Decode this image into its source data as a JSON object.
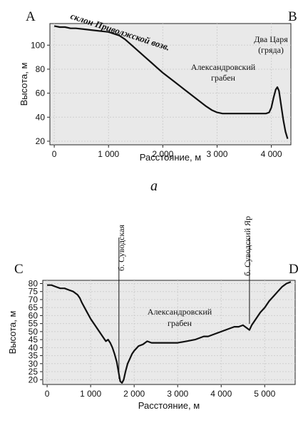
{
  "chart_data": [
    {
      "type": "line",
      "corner_labels": [
        "A",
        "B"
      ],
      "xlabel": "Расстояние, м",
      "ylabel": "Высота, м",
      "ylim": [
        17,
        118
      ],
      "xlim": [
        -80,
        4360
      ],
      "x_ticks": [
        0,
        1000,
        2000,
        3000,
        4000
      ],
      "x_tick_labels": [
        "0",
        "1 000",
        "2 000",
        "3 000",
        "4 000"
      ],
      "y_ticks": [
        20,
        40,
        60,
        80,
        100
      ],
      "y_tick_labels": [
        "20",
        "40",
        "60",
        "80",
        "100"
      ],
      "grid": true,
      "subfigure_label": "а",
      "annotations": [
        {
          "text": "склон Приволжской возв.",
          "x": 300,
          "y": 118,
          "style": "rotated"
        },
        {
          "text": "Два Царя",
          "x": 4080,
          "y": 100
        },
        {
          "text": "(гряда)",
          "x": 4080,
          "y": 88
        },
        {
          "text": "Александровский",
          "x": 2650,
          "y": 90
        },
        {
          "text": "грабен",
          "x": 2650,
          "y": 78
        }
      ],
      "series": [
        {
          "x": [
            0,
            100,
            200,
            300,
            400,
            600,
            800,
            1000,
            1200,
            1300,
            1400,
            1500,
            1600,
            1700,
            1800,
            1900,
            2000,
            2200,
            2400,
            2600,
            2800,
            2900,
            3000,
            3100,
            3500,
            3900,
            3960,
            4000,
            4040,
            4080,
            4110,
            4140,
            4180,
            4220,
            4260,
            4300
          ],
          "y": [
            116,
            115,
            115,
            114,
            114,
            113,
            112,
            111,
            108,
            105,
            101,
            97,
            93,
            89,
            85,
            81,
            77,
            70,
            63,
            56,
            49,
            46,
            44,
            43,
            43,
            43,
            44,
            48,
            56,
            63,
            65,
            62,
            50,
            38,
            28,
            22
          ]
        }
      ]
    },
    {
      "type": "line",
      "corner_labels": [
        "C",
        "D"
      ],
      "xlabel": "Расстояние, м",
      "ylabel": "Высота, м",
      "ylim": [
        17,
        82
      ],
      "xlim": [
        -100,
        5700
      ],
      "x_ticks": [
        0,
        1000,
        2000,
        3000,
        4000,
        5000
      ],
      "x_tick_labels": [
        "0",
        "1 000",
        "2 000",
        "3 000",
        "4 000",
        "5 000"
      ],
      "y_ticks": [
        20,
        25,
        30,
        35,
        40,
        45,
        50,
        55,
        60,
        65,
        70,
        75,
        80
      ],
      "y_tick_labels": [
        "20",
        "25",
        "30",
        "35",
        "40",
        "45",
        "50",
        "55",
        "60",
        "65",
        "70",
        "75",
        "80"
      ],
      "grid": true,
      "annotations": [
        {
          "text": "б. Суводская",
          "x": 1650,
          "style": "vertical"
        },
        {
          "text": "б. Суводский Яр",
          "x": 4650,
          "style": "vertical"
        },
        {
          "text": "Александровский",
          "x": 2900,
          "y": 61
        },
        {
          "text": "грабен",
          "x": 2900,
          "y": 55
        }
      ],
      "series": [
        {
          "x": [
            0,
            100,
            200,
            300,
            400,
            500,
            600,
            700,
            750,
            800,
            900,
            1000,
            1100,
            1200,
            1300,
            1350,
            1400,
            1450,
            1500,
            1550,
            1600,
            1640,
            1680,
            1720,
            1760,
            1800,
            1850,
            1900,
            1950,
            2000,
            2100,
            2200,
            2300,
            2400,
            2600,
            2800,
            3000,
            3200,
            3400,
            3500,
            3600,
            3700,
            3800,
            3900,
            4000,
            4100,
            4200,
            4300,
            4400,
            4500,
            4600,
            4650,
            4700,
            4800,
            4900,
            5000,
            5100,
            5200,
            5300,
            5400,
            5500,
            5600
          ],
          "y": [
            79,
            79,
            78,
            77,
            77,
            76,
            75,
            73,
            71,
            68,
            63,
            58,
            54,
            50,
            46,
            44,
            45,
            43,
            40,
            36,
            31,
            25,
            19,
            18,
            20,
            25,
            30,
            33,
            36,
            38,
            41,
            42,
            44,
            43,
            43,
            43,
            43,
            44,
            45,
            46,
            47,
            47,
            48,
            49,
            50,
            51,
            52,
            53,
            53,
            54,
            52,
            51,
            54,
            58,
            62,
            65,
            69,
            72,
            75,
            78,
            80,
            81
          ]
        }
      ]
    }
  ]
}
